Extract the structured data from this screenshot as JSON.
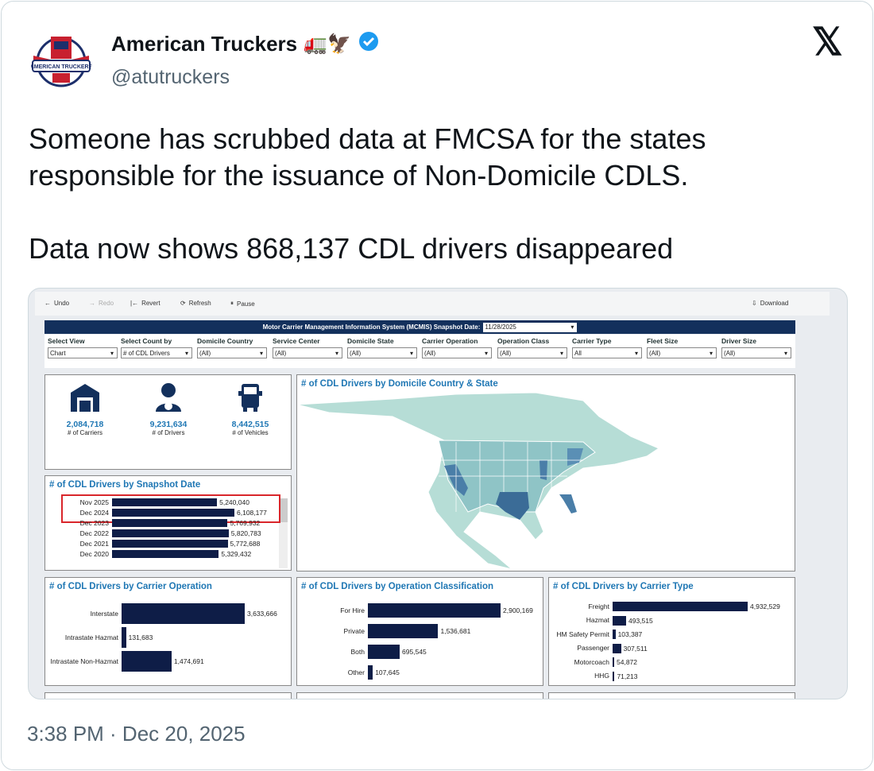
{
  "tweet": {
    "display_name": "American Truckers",
    "name_emojis": "🚛🦅",
    "handle": "@atutruckers",
    "text_line1": "Someone has scrubbed data at FMCSA for the states responsible for the issuance of Non-Domicile CDLS.",
    "text_line2": "Data now shows 868,137 CDL drivers disappeared",
    "timestamp": "3:38 PM · Dec 20, 2025",
    "x_logo": "𝕏",
    "verified": true,
    "avatar_text": "AMERICAN TRUCKERS"
  },
  "dashboard": {
    "toolbar": {
      "undo": "Undo",
      "redo": "Redo",
      "revert": "Revert",
      "refresh": "Refresh",
      "pause": "Pause",
      "download": "Download"
    },
    "title": "Motor Carrier Management Information System (MCMIS) Snapshot Date:",
    "snapshot_date": "11/28/2025",
    "filters": [
      {
        "label": "Select View",
        "value": "Chart"
      },
      {
        "label": "Select Count by",
        "value": "# of CDL Drivers"
      },
      {
        "label": "Domicile Country",
        "value": "(All)"
      },
      {
        "label": "Service Center",
        "value": "(All)"
      },
      {
        "label": "Domicile State",
        "value": "(All)"
      },
      {
        "label": "Carrier Operation",
        "value": "(All)"
      },
      {
        "label": "Operation Class",
        "value": "(All)"
      },
      {
        "label": "Carrier Type",
        "value": "All"
      },
      {
        "label": "Fleet Size",
        "value": "(All)"
      },
      {
        "label": "Driver Size",
        "value": "(All)"
      }
    ],
    "kpis": [
      {
        "value": "2,084,718",
        "label": "# of Carriers",
        "icon": "warehouse-icon"
      },
      {
        "value": "9,231,634",
        "label": "# of Drivers",
        "icon": "driver-icon"
      },
      {
        "value": "8,442,515",
        "label": "# of Vehicles",
        "icon": "truck-icon"
      }
    ],
    "map_title": "# of CDL Drivers by Domicile Country & State",
    "bar_color": "#0e1d47",
    "title_color": "#1f77b4",
    "highlight_color": "#d9262b"
  },
  "chart_data": [
    {
      "type": "bar",
      "title": "# of CDL Drivers by Snapshot Date",
      "categories": [
        "Nov 2025",
        "Dec 2024",
        "Dec 2023",
        "Dec 2022",
        "Dec 2021",
        "Dec 2020"
      ],
      "values": [
        5240040,
        6108177,
        5769932,
        5820783,
        5772688,
        5329432
      ],
      "labels": [
        "5,240,040",
        "6,108,177",
        "5,769,932",
        "5,820,783",
        "5,772,688",
        "5,329,432"
      ],
      "highlighted": [
        "Nov 2025",
        "Dec 2024"
      ]
    },
    {
      "type": "bar",
      "title": "# of CDL Drivers by Carrier Operation",
      "categories": [
        "Interstate",
        "Intrastate Hazmat",
        "Intrastate Non-Hazmat"
      ],
      "values": [
        3633666,
        131683,
        1474691
      ],
      "labels": [
        "3,633,666",
        "131,683",
        "1,474,691"
      ]
    },
    {
      "type": "bar",
      "title": "# of CDL Drivers by Operation Classification",
      "categories": [
        "For Hire",
        "Private",
        "Both",
        "Other"
      ],
      "values": [
        2900169,
        1536681,
        695545,
        107645
      ],
      "labels": [
        "2,900,169",
        "1,536,681",
        "695,545",
        "107,645"
      ]
    },
    {
      "type": "bar",
      "title": "# of CDL Drivers by Carrier Type",
      "categories": [
        "Freight",
        "Hazmat",
        "HM Safety Permit",
        "Passenger",
        "Motorcoach",
        "HHG"
      ],
      "values": [
        4932529,
        493515,
        103387,
        307511,
        54872,
        71213
      ],
      "labels": [
        "4,932,529",
        "493,515",
        "103,387",
        "307,511",
        "54,872",
        "71,213"
      ]
    }
  ]
}
